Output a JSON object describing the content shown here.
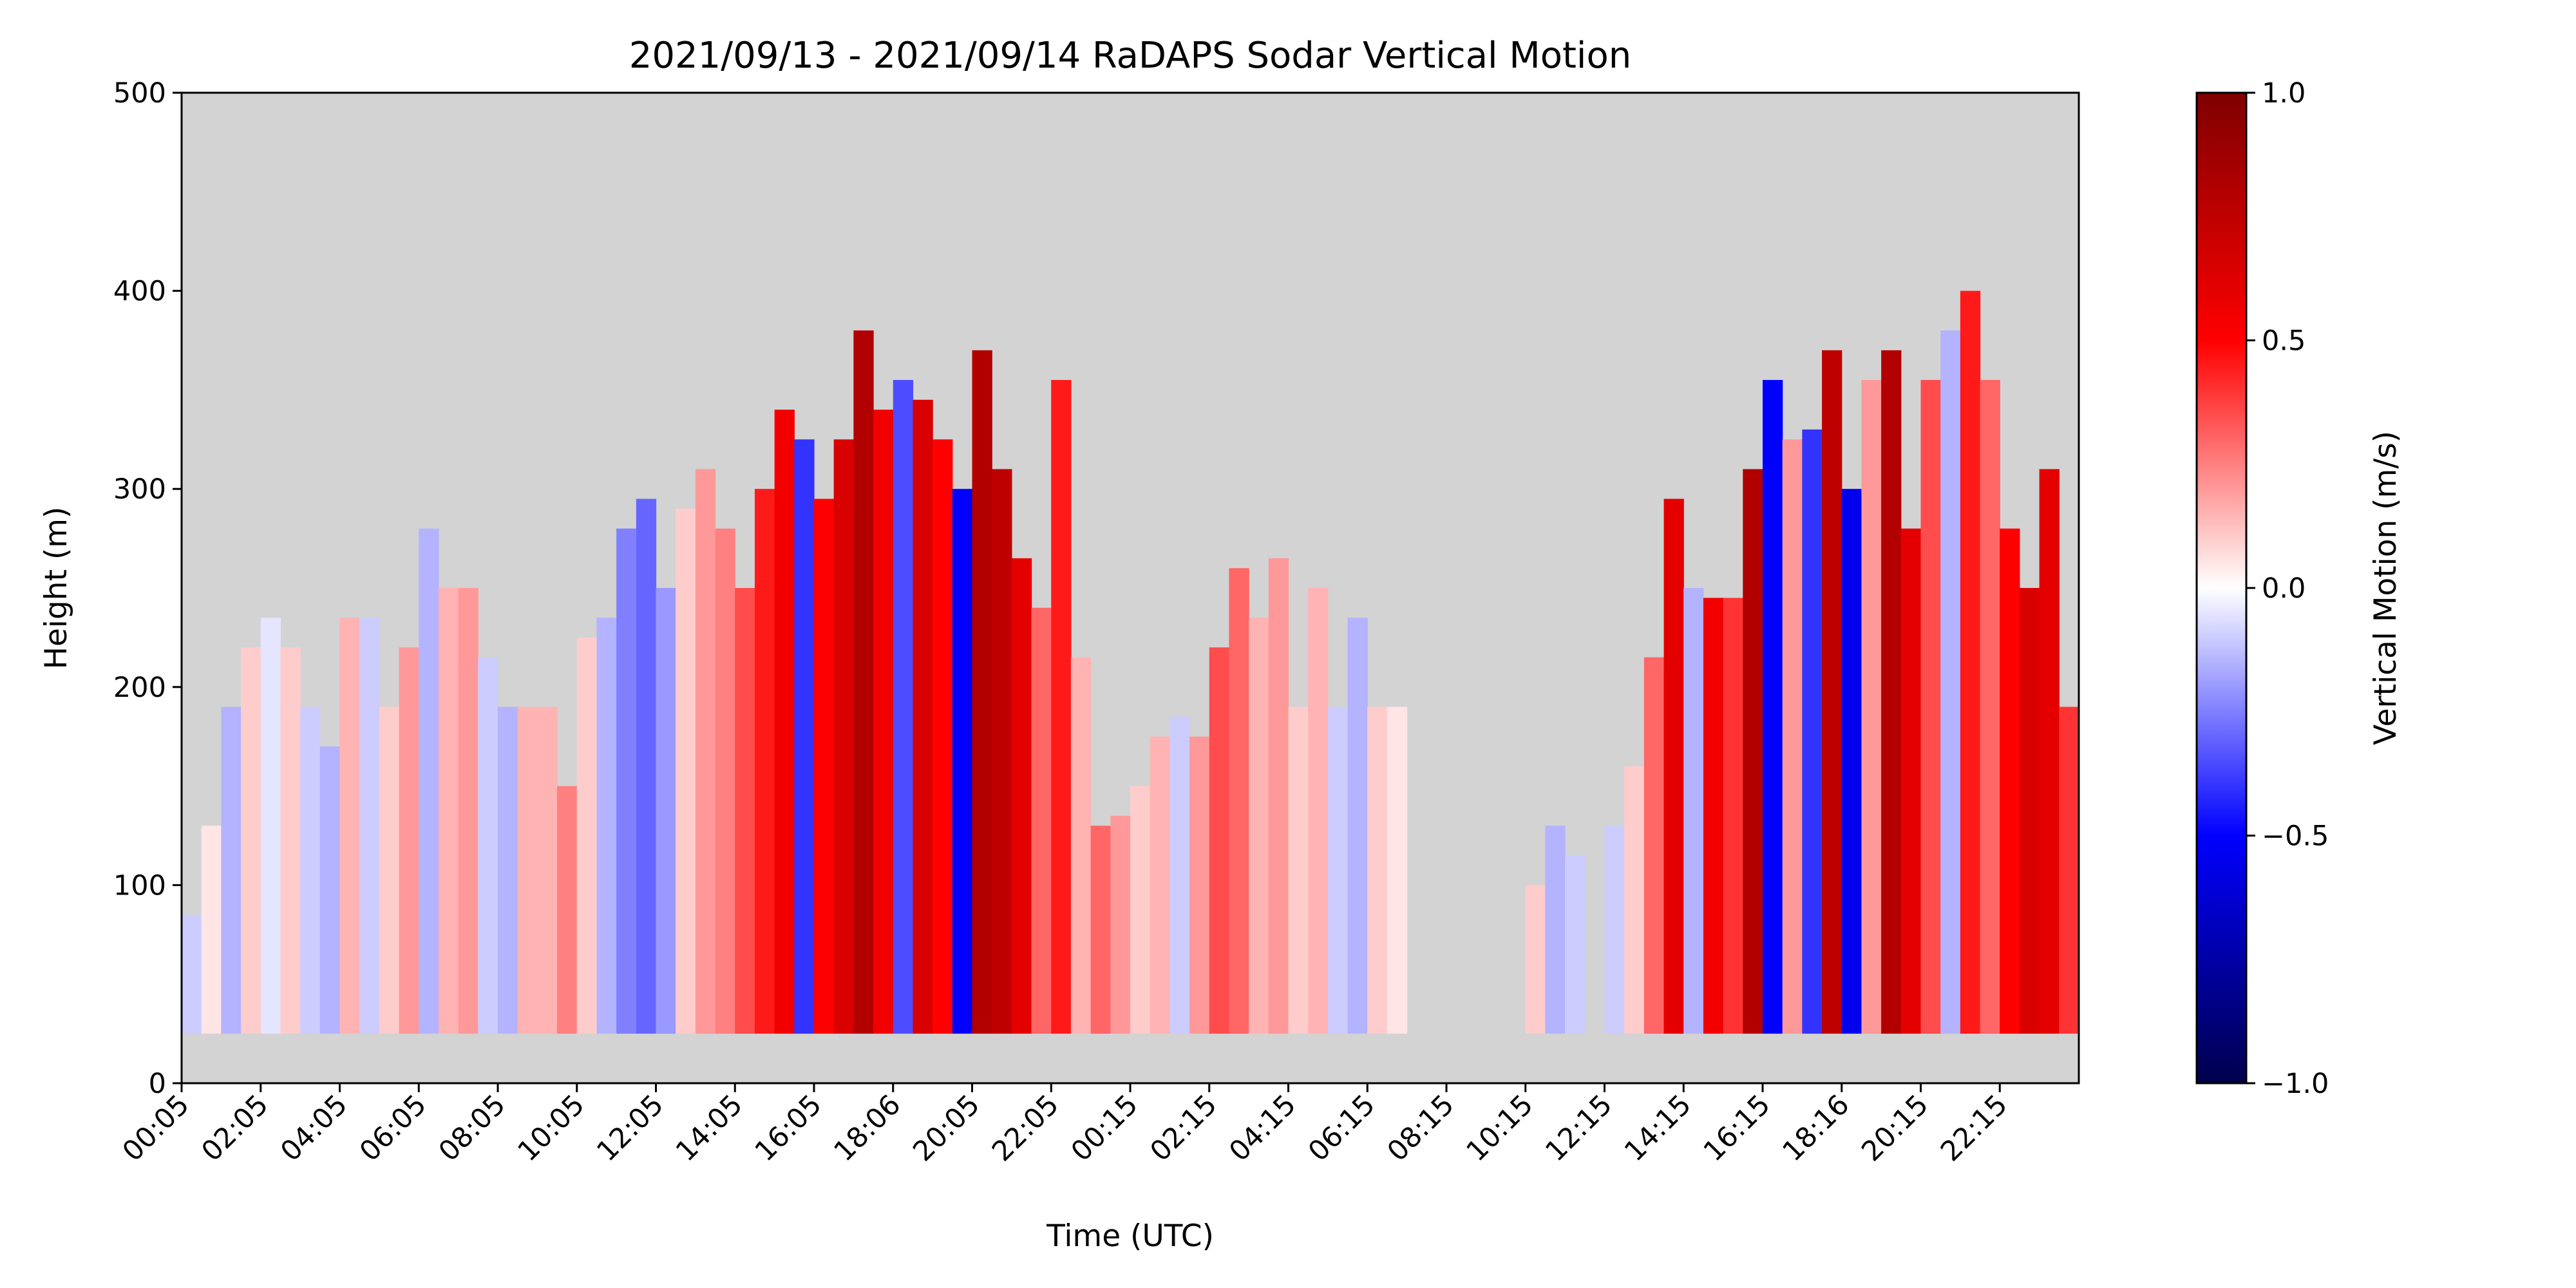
{
  "chart_data": {
    "type": "heatmap",
    "title": "2021/09/13 - 2021/09/14 RaDAPS Sodar Vertical Motion",
    "xlabel": "Time (UTC)",
    "ylabel": "Height (m)",
    "x_tick_labels": [
      "00:05",
      "02:05",
      "04:05",
      "06:05",
      "08:05",
      "10:05",
      "12:05",
      "14:05",
      "16:05",
      "18:06",
      "20:05",
      "22:05",
      "00:15",
      "02:15",
      "04:15",
      "06:15",
      "08:15",
      "10:15",
      "12:15",
      "14:15",
      "16:15",
      "18:16",
      "20:15",
      "22:15"
    ],
    "y_ticks": [
      0,
      100,
      200,
      300,
      400,
      500
    ],
    "ylim": [
      0,
      500
    ],
    "x_range_hours": [
      0,
      48
    ],
    "no_data_color": "#d3d3d3",
    "min_height_m": 25,
    "colorbar": {
      "label": "Vertical Motion (m/s)",
      "colormap": "seismic",
      "vmin": -1.0,
      "vmax": 1.0,
      "ticks": [
        1.0,
        0.5,
        0.0,
        -0.5,
        -1.0
      ],
      "tick_labels": [
        "1.0",
        "0.5",
        "0.0",
        "−0.5",
        "−1.0"
      ],
      "stops": [
        "#00004c",
        "#0000ff",
        "#ffffff",
        "#ff0000",
        "#7f0000"
      ]
    },
    "columns": [
      {
        "t": 0.0,
        "top": 85,
        "w": -0.1
      },
      {
        "t": 0.5,
        "top": 130,
        "w": 0.05
      },
      {
        "t": 1.0,
        "top": 190,
        "w": -0.15
      },
      {
        "t": 1.5,
        "top": 220,
        "w": 0.1
      },
      {
        "t": 2.0,
        "top": 235,
        "w": -0.05
      },
      {
        "t": 2.5,
        "top": 220,
        "w": 0.1
      },
      {
        "t": 3.0,
        "top": 190,
        "w": -0.1
      },
      {
        "t": 3.5,
        "top": 170,
        "w": -0.15
      },
      {
        "t": 4.0,
        "top": 235,
        "w": 0.15
      },
      {
        "t": 4.5,
        "top": 235,
        "w": -0.1
      },
      {
        "t": 5.0,
        "top": 190,
        "w": 0.1
      },
      {
        "t": 5.5,
        "top": 220,
        "w": 0.2
      },
      {
        "t": 6.0,
        "top": 280,
        "w": -0.15
      },
      {
        "t": 6.5,
        "top": 250,
        "w": 0.15
      },
      {
        "t": 7.0,
        "top": 250,
        "w": 0.2
      },
      {
        "t": 7.5,
        "top": 215,
        "w": -0.1
      },
      {
        "t": 8.0,
        "top": 190,
        "w": -0.15
      },
      {
        "t": 8.5,
        "top": 190,
        "w": 0.15
      },
      {
        "t": 9.0,
        "top": 190,
        "w": 0.15
      },
      {
        "t": 9.5,
        "top": 150,
        "w": 0.25
      },
      {
        "t": 10.0,
        "top": 225,
        "w": 0.1
      },
      {
        "t": 10.5,
        "top": 235,
        "w": -0.15
      },
      {
        "t": 11.0,
        "top": 280,
        "w": -0.25
      },
      {
        "t": 11.5,
        "top": 295,
        "w": -0.3
      },
      {
        "t": 12.0,
        "top": 250,
        "w": -0.2
      },
      {
        "t": 12.5,
        "top": 290,
        "w": 0.1
      },
      {
        "t": 13.0,
        "top": 310,
        "w": 0.2
      },
      {
        "t": 13.5,
        "top": 280,
        "w": 0.25
      },
      {
        "t": 14.0,
        "top": 250,
        "w": 0.35
      },
      {
        "t": 14.5,
        "top": 300,
        "w": 0.45
      },
      {
        "t": 15.0,
        "top": 340,
        "w": 0.55
      },
      {
        "t": 15.5,
        "top": 325,
        "w": -0.4
      },
      {
        "t": 16.0,
        "top": 295,
        "w": 0.5
      },
      {
        "t": 16.5,
        "top": 325,
        "w": 0.65
      },
      {
        "t": 17.0,
        "top": 380,
        "w": 0.8
      },
      {
        "t": 17.5,
        "top": 340,
        "w": 0.55
      },
      {
        "t": 18.0,
        "top": 355,
        "w": -0.35
      },
      {
        "t": 18.5,
        "top": 345,
        "w": 0.65
      },
      {
        "t": 19.0,
        "top": 325,
        "w": 0.5
      },
      {
        "t": 19.5,
        "top": 300,
        "w": -0.5
      },
      {
        "t": 20.0,
        "top": 370,
        "w": 0.8
      },
      {
        "t": 20.5,
        "top": 310,
        "w": 0.75
      },
      {
        "t": 21.0,
        "top": 265,
        "w": 0.6
      },
      {
        "t": 21.5,
        "top": 240,
        "w": 0.3
      },
      {
        "t": 22.0,
        "top": 355,
        "w": 0.45
      },
      {
        "t": 22.5,
        "top": 215,
        "w": 0.15
      },
      {
        "t": 23.0,
        "top": 130,
        "w": 0.3
      },
      {
        "t": 23.5,
        "top": 135,
        "w": 0.2
      },
      {
        "t": 24.0,
        "top": 150,
        "w": 0.1
      },
      {
        "t": 24.5,
        "top": 175,
        "w": 0.15
      },
      {
        "t": 25.0,
        "top": 185,
        "w": -0.1
      },
      {
        "t": 25.5,
        "top": 175,
        "w": 0.2
      },
      {
        "t": 26.0,
        "top": 220,
        "w": 0.35
      },
      {
        "t": 26.5,
        "top": 260,
        "w": 0.3
      },
      {
        "t": 27.0,
        "top": 235,
        "w": 0.15
      },
      {
        "t": 27.5,
        "top": 265,
        "w": 0.2
      },
      {
        "t": 28.0,
        "top": 190,
        "w": 0.1
      },
      {
        "t": 28.5,
        "top": 250,
        "w": 0.15
      },
      {
        "t": 29.0,
        "top": 190,
        "w": -0.1
      },
      {
        "t": 29.5,
        "top": 235,
        "w": -0.15
      },
      {
        "t": 30.0,
        "top": 190,
        "w": 0.1
      },
      {
        "t": 30.5,
        "top": 190,
        "w": 0.05
      },
      {
        "t": 34.0,
        "top": 100,
        "w": 0.1
      },
      {
        "t": 34.5,
        "top": 130,
        "w": -0.15
      },
      {
        "t": 35.0,
        "top": 115,
        "w": -0.1
      },
      {
        "t": 36.0,
        "top": 130,
        "w": -0.1
      },
      {
        "t": 36.5,
        "top": 160,
        "w": 0.1
      },
      {
        "t": 37.0,
        "top": 215,
        "w": 0.3
      },
      {
        "t": 37.5,
        "top": 295,
        "w": 0.6
      },
      {
        "t": 38.0,
        "top": 250,
        "w": -0.15
      },
      {
        "t": 38.5,
        "top": 245,
        "w": 0.55
      },
      {
        "t": 39.0,
        "top": 245,
        "w": 0.4
      },
      {
        "t": 39.5,
        "top": 310,
        "w": 0.8
      },
      {
        "t": 40.0,
        "top": 355,
        "w": -0.5
      },
      {
        "t": 40.5,
        "top": 325,
        "w": 0.2
      },
      {
        "t": 41.0,
        "top": 330,
        "w": -0.4
      },
      {
        "t": 41.5,
        "top": 370,
        "w": 0.75
      },
      {
        "t": 42.0,
        "top": 300,
        "w": -0.55
      },
      {
        "t": 42.5,
        "top": 355,
        "w": 0.2
      },
      {
        "t": 43.0,
        "top": 370,
        "w": 0.8
      },
      {
        "t": 43.5,
        "top": 280,
        "w": 0.6
      },
      {
        "t": 44.0,
        "top": 355,
        "w": 0.35
      },
      {
        "t": 44.5,
        "top": 380,
        "w": -0.15
      },
      {
        "t": 45.0,
        "top": 400,
        "w": 0.45
      },
      {
        "t": 45.5,
        "top": 355,
        "w": 0.3
      },
      {
        "t": 46.0,
        "top": 280,
        "w": 0.5
      },
      {
        "t": 46.5,
        "top": 250,
        "w": 0.65
      },
      {
        "t": 47.0,
        "top": 310,
        "w": 0.6
      },
      {
        "t": 47.5,
        "top": 190,
        "w": 0.4
      }
    ]
  }
}
